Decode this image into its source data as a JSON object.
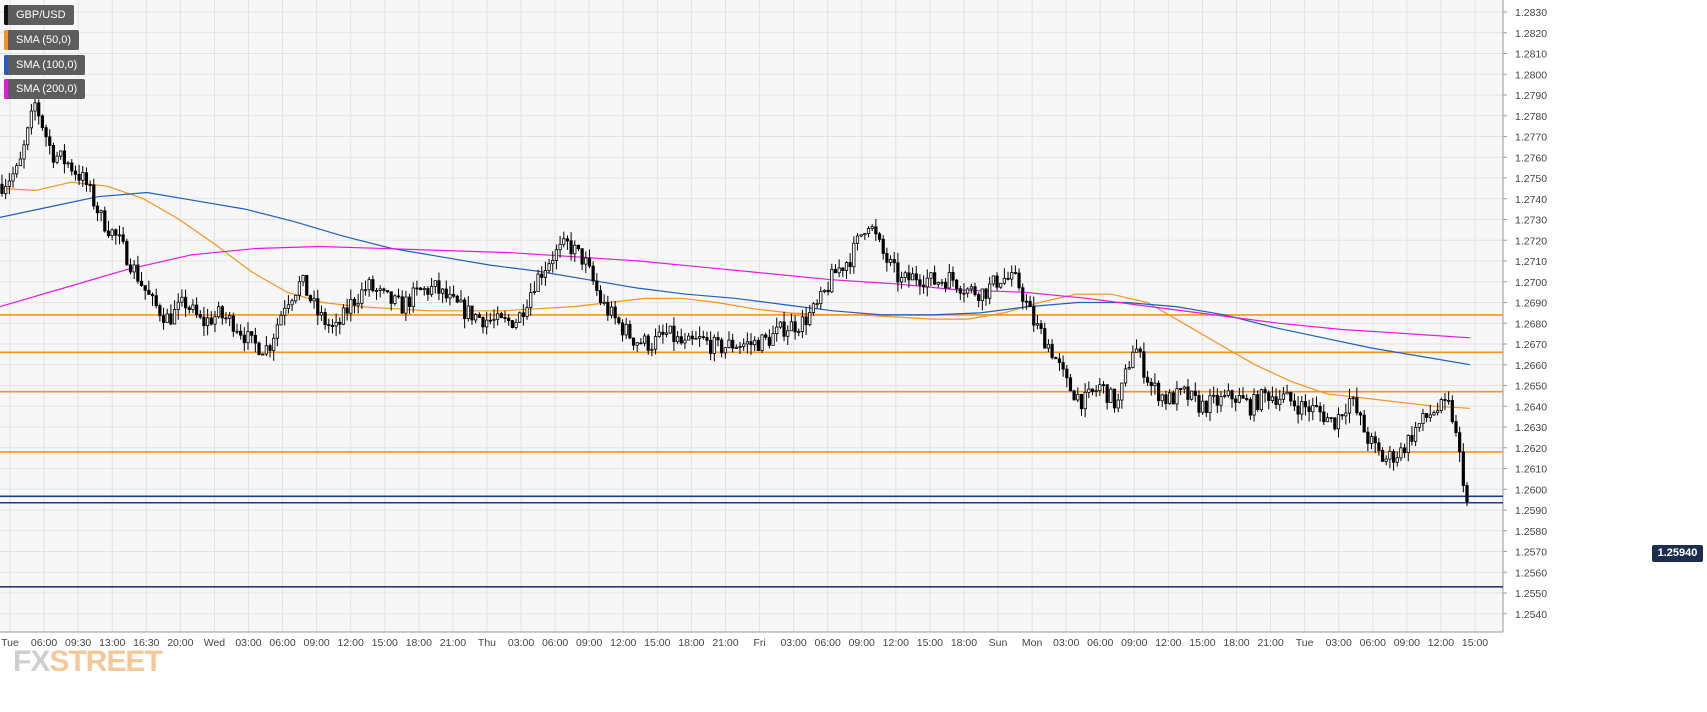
{
  "legend": [
    {
      "label": "GBP/USD",
      "color": "#111111"
    },
    {
      "label": "SMA (50,0)",
      "color": "#f7931e"
    },
    {
      "label": "SMA (100,0)",
      "color": "#1f5fbf"
    },
    {
      "label": "SMA (200,0)",
      "color": "#e41ae4"
    }
  ],
  "watermark": {
    "part1": "FX",
    "part2": "STREET"
  },
  "current_price": "1.25940",
  "chart_data": {
    "type": "candlestick",
    "symbol": "GBP/USD",
    "y_range": [
      1.2535,
      1.2835
    ],
    "y_ticks": [
      "1.2830",
      "1.2820",
      "1.2810",
      "1.2800",
      "1.2790",
      "1.2780",
      "1.2770",
      "1.2760",
      "1.2750",
      "1.2740",
      "1.2730",
      "1.2720",
      "1.2710",
      "1.2700",
      "1.2690",
      "1.2680",
      "1.2670",
      "1.2660",
      "1.2650",
      "1.2640",
      "1.2630",
      "1.2620",
      "1.2610",
      "1.2600",
      "1.2590",
      "1.2580",
      "1.2570",
      "1.2560",
      "1.2550",
      "1.2540"
    ],
    "x_ticks": [
      "Tue",
      "06:00",
      "09:30",
      "13:00",
      "16:30",
      "20:00",
      "Wed",
      "03:00",
      "06:00",
      "09:00",
      "12:00",
      "15:00",
      "18:00",
      "21:00",
      "Thu",
      "03:00",
      "06:00",
      "09:00",
      "12:00",
      "15:00",
      "18:00",
      "21:00",
      "Fri",
      "03:00",
      "06:00",
      "09:00",
      "12:00",
      "15:00",
      "18:00",
      "Sun",
      "Mon",
      "03:00",
      "06:00",
      "09:00",
      "12:00",
      "15:00",
      "18:00",
      "21:00",
      "Tue",
      "03:00",
      "06:00",
      "09:00",
      "12:00",
      "15:00"
    ],
    "horizontal_levels": [
      {
        "value": 1.2684,
        "color": "#f7931e"
      },
      {
        "value": 1.2666,
        "color": "#f7931e"
      },
      {
        "value": 1.2647,
        "color": "#f7931e"
      },
      {
        "value": 1.2618,
        "color": "#f7931e"
      },
      {
        "value": 1.25966,
        "color": "#1c3f7a"
      },
      {
        "value": 1.25935,
        "color": "#1c3f7a"
      },
      {
        "value": 1.2553,
        "color": "#1c3f7a"
      }
    ],
    "key_points": [
      1.2747,
      1.2754,
      1.2786,
      1.2762,
      1.2757,
      1.2748,
      1.273,
      1.272,
      1.2705,
      1.269,
      1.2682,
      1.269,
      1.268,
      1.2684,
      1.268,
      1.267,
      1.2668,
      1.269,
      1.27,
      1.2684,
      1.2676,
      1.269,
      1.2698,
      1.2692,
      1.2688,
      1.2695,
      1.2697,
      1.269,
      1.2685,
      1.2682,
      1.268,
      1.2682,
      1.27,
      1.2712,
      1.2718,
      1.271,
      1.269,
      1.268,
      1.2672,
      1.267,
      1.2675,
      1.2669,
      1.2672,
      1.2668,
      1.267,
      1.267,
      1.2672,
      1.2678,
      1.268,
      1.2688,
      1.2704,
      1.2712,
      1.273,
      1.2712,
      1.27,
      1.2703,
      1.27,
      1.2702,
      1.2696,
      1.2695,
      1.2702,
      1.27,
      1.268,
      1.2668,
      1.265,
      1.2642,
      1.265,
      1.264,
      1.267,
      1.265,
      1.2643,
      1.2646,
      1.264,
      1.2642,
      1.2645,
      1.264,
      1.2646,
      1.2644,
      1.264,
      1.2638,
      1.2632,
      1.2644,
      1.2625,
      1.2614,
      1.2618,
      1.263,
      1.2638,
      1.264,
      1.2596
    ],
    "series": [
      {
        "name": "SMA (50,0)",
        "color": "#f7931e",
        "values": [
          1.2745,
          1.2744,
          1.2748,
          1.2746,
          1.274,
          1.273,
          1.2718,
          1.2705,
          1.2695,
          1.269,
          1.2688,
          1.2687,
          1.2686,
          1.2686,
          1.2686,
          1.2687,
          1.2688,
          1.269,
          1.2692,
          1.2692,
          1.269,
          1.2687,
          1.2685,
          1.2684,
          1.2684,
          1.2683,
          1.2682,
          1.2682,
          1.2685,
          1.269,
          1.2694,
          1.2694,
          1.269,
          1.268,
          1.267,
          1.266,
          1.2652,
          1.2646,
          1.2644,
          1.2642,
          1.264,
          1.2639
        ]
      },
      {
        "name": "SMA (100,0)",
        "color": "#1f5fbf",
        "values": [
          1.2731,
          1.2736,
          1.2741,
          1.2743,
          1.2739,
          1.2735,
          1.2729,
          1.2722,
          1.2716,
          1.2712,
          1.2708,
          1.2705,
          1.2701,
          1.2697,
          1.2694,
          1.2692,
          1.2689,
          1.2686,
          1.2684,
          1.2684,
          1.2685,
          1.2688,
          1.269,
          1.269,
          1.2688,
          1.2684,
          1.2678,
          1.2673,
          1.2668,
          1.2664,
          1.266
        ]
      },
      {
        "name": "SMA (200,0)",
        "color": "#e41ae4",
        "values": [
          1.2688,
          1.2697,
          1.2706,
          1.2713,
          1.2716,
          1.2717,
          1.2716,
          1.2715,
          1.2714,
          1.2712,
          1.271,
          1.2707,
          1.2704,
          1.2701,
          1.2699,
          1.2696,
          1.2695,
          1.2692,
          1.2688,
          1.2684,
          1.268,
          1.2677,
          1.2675,
          1.2673
        ]
      }
    ]
  }
}
